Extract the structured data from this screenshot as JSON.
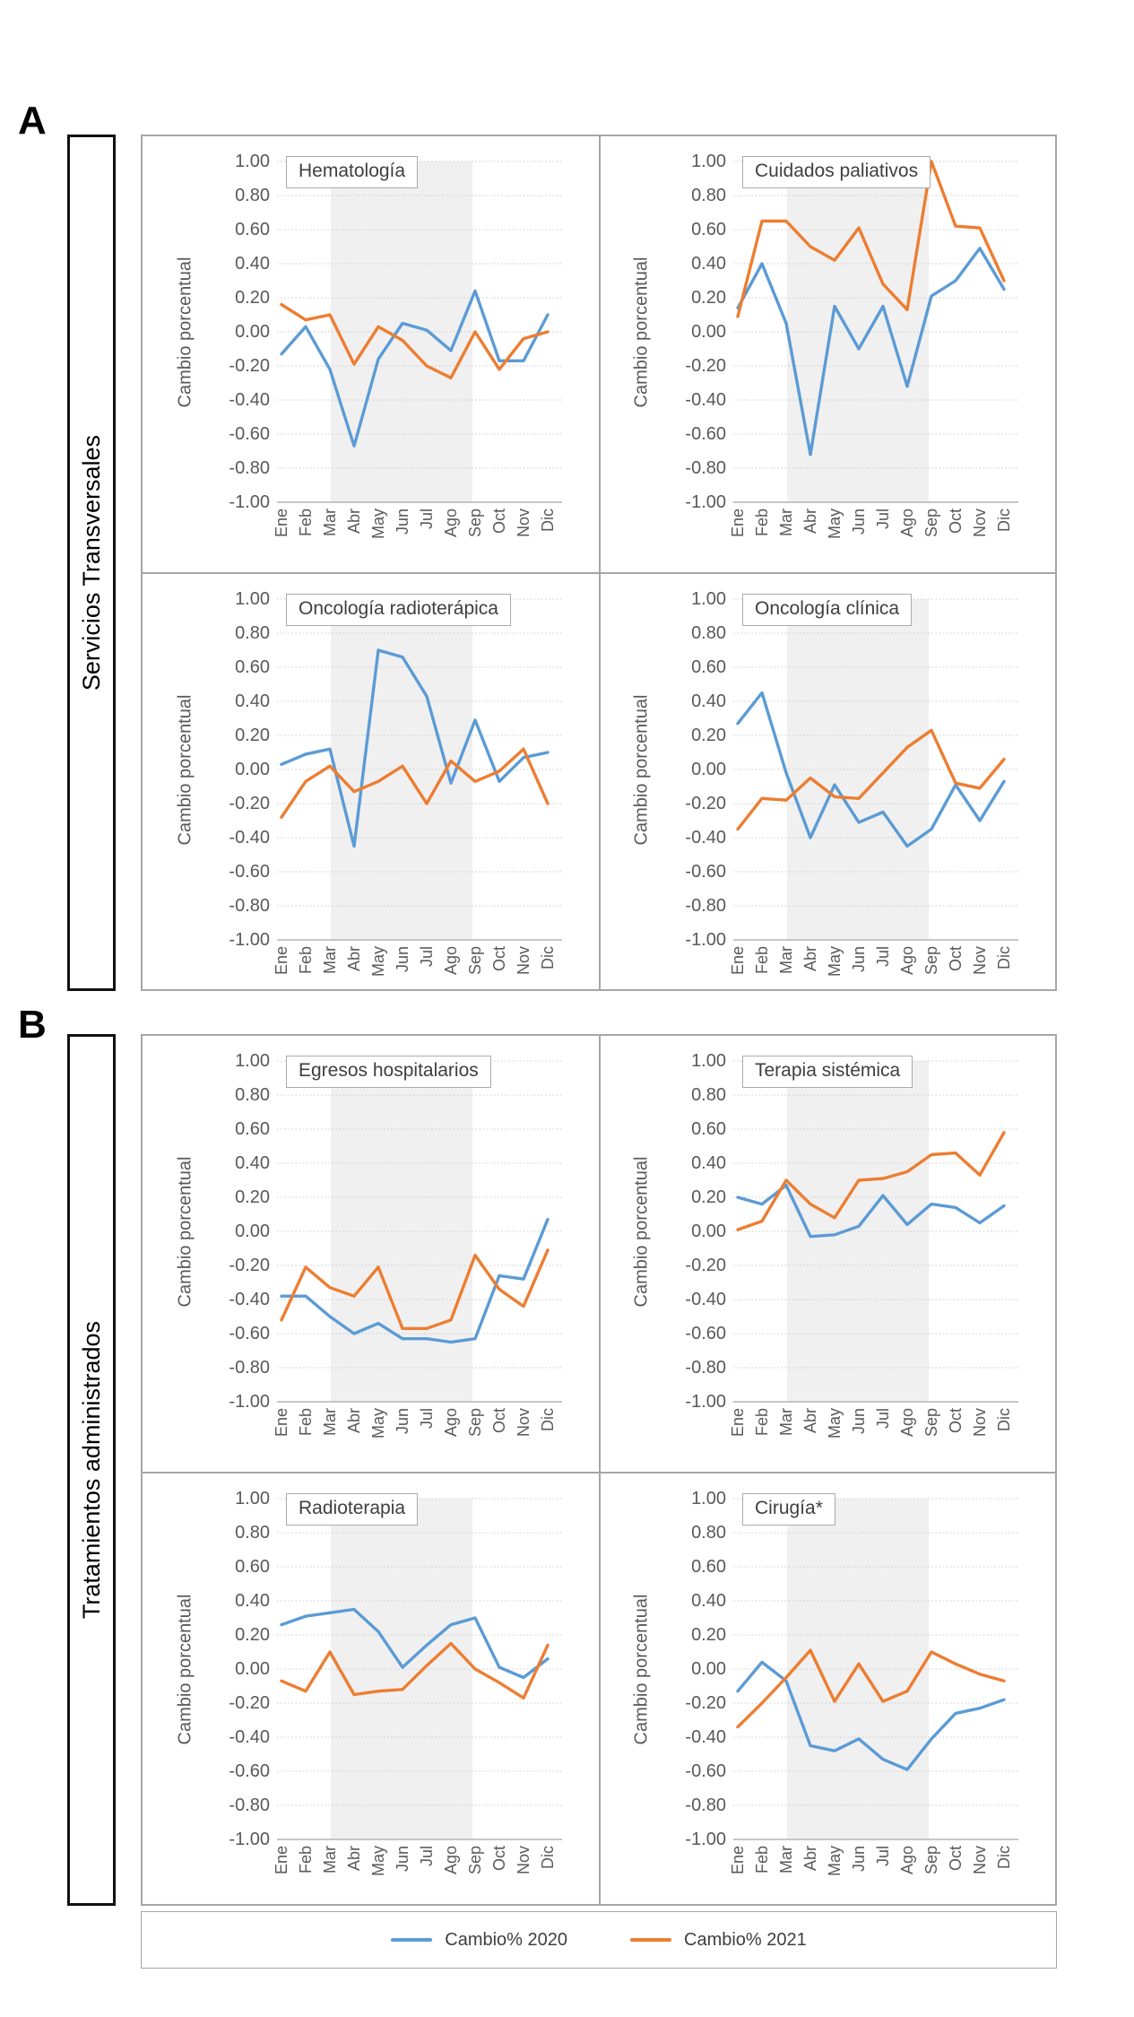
{
  "figure": {
    "panels": [
      {
        "letter": "A",
        "label": "Servicios Transversales"
      },
      {
        "letter": "B",
        "label": "Tratamientos administrados"
      }
    ]
  },
  "axis": {
    "y_title": "Cambio porcentual",
    "y_tick_labels": [
      "1.00",
      "0.80",
      "0.60",
      "0.40",
      "0.20",
      "0.00",
      "-0.20",
      "-0.40",
      "-0.60",
      "-0.80",
      "-1.00"
    ],
    "ylim": [
      -1,
      1
    ]
  },
  "legend": {
    "items": [
      {
        "label": "Cambio% 2020",
        "color": "#5B9BD5"
      },
      {
        "label": "Cambio% 2021",
        "color": "#ED7D31"
      }
    ]
  },
  "chart_data": [
    {
      "type": "line",
      "title": "Hematología",
      "xlabel": "",
      "ylabel": "Cambio porcentual",
      "ylim": [
        -1,
        1
      ],
      "categories": [
        "Ene",
        "Feb",
        "Mar",
        "Abr",
        "May",
        "Jun",
        "Jul",
        "Ago",
        "Sep",
        "Oct",
        "Nov",
        "Dic"
      ],
      "shaded_x_range": [
        "Mar",
        "Ago"
      ],
      "series": [
        {
          "name": "Cambio% 2020",
          "values": [
            -0.13,
            0.03,
            -0.22,
            -0.67,
            -0.16,
            0.05,
            0.01,
            -0.11,
            0.24,
            -0.17,
            -0.17,
            0.1
          ]
        },
        {
          "name": "Cambio% 2021",
          "values": [
            0.16,
            0.07,
            0.1,
            -0.19,
            0.03,
            -0.05,
            -0.2,
            -0.27,
            0.0,
            -0.22,
            -0.04,
            0.0
          ]
        }
      ]
    },
    {
      "type": "line",
      "title": "Cuidados paliativos",
      "xlabel": "",
      "ylabel": "Cambio porcentual",
      "ylim": [
        -1,
        1
      ],
      "categories": [
        "Ene",
        "Feb",
        "Mar",
        "Abr",
        "May",
        "Jun",
        "Jul",
        "Ago",
        "Sep",
        "Oct",
        "Nov",
        "Dic"
      ],
      "shaded_x_range": [
        "Mar",
        "Ago"
      ],
      "series": [
        {
          "name": "Cambio% 2020",
          "values": [
            0.14,
            0.4,
            0.05,
            -0.72,
            0.15,
            -0.1,
            0.15,
            -0.32,
            0.21,
            0.3,
            0.49,
            0.25
          ]
        },
        {
          "name": "Cambio% 2021",
          "values": [
            0.09,
            0.65,
            0.65,
            0.5,
            0.42,
            0.61,
            0.28,
            0.13,
            1.0,
            0.62,
            0.61,
            0.3
          ]
        }
      ]
    },
    {
      "type": "line",
      "title": "Oncología radioterápica",
      "xlabel": "",
      "ylabel": "Cambio porcentual",
      "ylim": [
        -1,
        1
      ],
      "categories": [
        "Ene",
        "Feb",
        "Mar",
        "Abr",
        "May",
        "Jun",
        "Jul",
        "Ago",
        "Sep",
        "Oct",
        "Nov",
        "Dic"
      ],
      "shaded_x_range": [
        "Mar",
        "Ago"
      ],
      "series": [
        {
          "name": "Cambio% 2020",
          "values": [
            0.03,
            0.09,
            0.12,
            -0.45,
            0.7,
            0.66,
            0.43,
            -0.08,
            0.29,
            -0.07,
            0.07,
            0.1
          ]
        },
        {
          "name": "Cambio% 2021",
          "values": [
            -0.28,
            -0.07,
            0.02,
            -0.13,
            -0.07,
            0.02,
            -0.2,
            0.05,
            -0.07,
            -0.01,
            0.12,
            -0.2
          ]
        }
      ]
    },
    {
      "type": "line",
      "title": "Oncología clínica",
      "xlabel": "",
      "ylabel": "Cambio porcentual",
      "ylim": [
        -1,
        1
      ],
      "categories": [
        "Ene",
        "Feb",
        "Mar",
        "Abr",
        "May",
        "Jun",
        "Jul",
        "Ago",
        "Sep",
        "Oct",
        "Nov",
        "Dic"
      ],
      "shaded_x_range": [
        "Mar",
        "Ago"
      ],
      "series": [
        {
          "name": "Cambio% 2020",
          "values": [
            0.27,
            0.45,
            -0.02,
            -0.4,
            -0.09,
            -0.31,
            -0.25,
            -0.45,
            -0.35,
            -0.09,
            -0.3,
            -0.07
          ]
        },
        {
          "name": "Cambio% 2021",
          "values": [
            -0.35,
            -0.17,
            -0.18,
            -0.05,
            -0.16,
            -0.17,
            -0.02,
            0.13,
            0.23,
            -0.08,
            -0.11,
            0.06
          ]
        }
      ]
    },
    {
      "type": "line",
      "title": "Egresos hospitalarios",
      "xlabel": "",
      "ylabel": "Cambio porcentual",
      "ylim": [
        -1,
        1
      ],
      "categories": [
        "Ene",
        "Feb",
        "Mar",
        "Abr",
        "May",
        "Jun",
        "Jul",
        "Ago",
        "Sep",
        "Oct",
        "Nov",
        "Dic"
      ],
      "shaded_x_range": [
        "Mar",
        "Ago"
      ],
      "series": [
        {
          "name": "Cambio% 2020",
          "values": [
            -0.38,
            -0.38,
            -0.5,
            -0.6,
            -0.54,
            -0.63,
            -0.63,
            -0.65,
            -0.63,
            -0.26,
            -0.28,
            0.07
          ]
        },
        {
          "name": "Cambio% 2021",
          "values": [
            -0.52,
            -0.21,
            -0.33,
            -0.38,
            -0.21,
            -0.57,
            -0.57,
            -0.52,
            -0.14,
            -0.34,
            -0.44,
            -0.11
          ]
        }
      ]
    },
    {
      "type": "line",
      "title": "Terapia sistémica",
      "xlabel": "",
      "ylabel": "Cambio porcentual",
      "ylim": [
        -1,
        1
      ],
      "categories": [
        "Ene",
        "Feb",
        "Mar",
        "Abr",
        "May",
        "Jun",
        "Jul",
        "Ago",
        "Sep",
        "Oct",
        "Nov",
        "Dic"
      ],
      "shaded_x_range": [
        "Mar",
        "Ago"
      ],
      "series": [
        {
          "name": "Cambio% 2020",
          "values": [
            0.2,
            0.16,
            0.27,
            -0.03,
            -0.02,
            0.03,
            0.21,
            0.04,
            0.16,
            0.14,
            0.05,
            0.15
          ]
        },
        {
          "name": "Cambio% 2021",
          "values": [
            0.01,
            0.06,
            0.3,
            0.16,
            0.08,
            0.3,
            0.31,
            0.35,
            0.45,
            0.46,
            0.33,
            0.58
          ]
        }
      ]
    },
    {
      "type": "line",
      "title": "Radioterapia",
      "xlabel": "",
      "ylabel": "Cambio porcentual",
      "ylim": [
        -1,
        1
      ],
      "categories": [
        "Ene",
        "Feb",
        "Mar",
        "Abr",
        "May",
        "Jun",
        "Jul",
        "Ago",
        "Sep",
        "Oct",
        "Nov",
        "Dic"
      ],
      "shaded_x_range": [
        "Mar",
        "Ago"
      ],
      "series": [
        {
          "name": "Cambio% 2020",
          "values": [
            0.26,
            0.31,
            0.33,
            0.35,
            0.22,
            0.01,
            0.14,
            0.26,
            0.3,
            0.01,
            -0.05,
            0.06
          ]
        },
        {
          "name": "Cambio% 2021",
          "values": [
            -0.07,
            -0.13,
            0.1,
            -0.15,
            -0.13,
            -0.12,
            0.02,
            0.15,
            0.0,
            -0.08,
            -0.17,
            0.14
          ]
        }
      ]
    },
    {
      "type": "line",
      "title": "Cirugía*",
      "xlabel": "",
      "ylabel": "Cambio porcentual",
      "ylim": [
        -1,
        1
      ],
      "categories": [
        "Ene",
        "Feb",
        "Mar",
        "Abr",
        "May",
        "Jun",
        "Jul",
        "Ago",
        "Sep",
        "Oct",
        "Nov",
        "Dic"
      ],
      "shaded_x_range": [
        "Mar",
        "Ago"
      ],
      "series": [
        {
          "name": "Cambio% 2020",
          "values": [
            -0.13,
            0.04,
            -0.07,
            -0.45,
            -0.48,
            -0.41,
            -0.53,
            -0.59,
            -0.41,
            -0.26,
            -0.23,
            -0.18
          ]
        },
        {
          "name": "Cambio% 2021",
          "values": [
            -0.34,
            -0.2,
            -0.05,
            0.11,
            -0.19,
            0.03,
            -0.19,
            -0.13,
            0.1,
            0.03,
            -0.03,
            -0.07
          ]
        }
      ]
    }
  ],
  "styles": {
    "band_fill": "#f0f0f0",
    "gridline_color": "#c9c9c9",
    "axisline_color": "#b3b3b3"
  }
}
